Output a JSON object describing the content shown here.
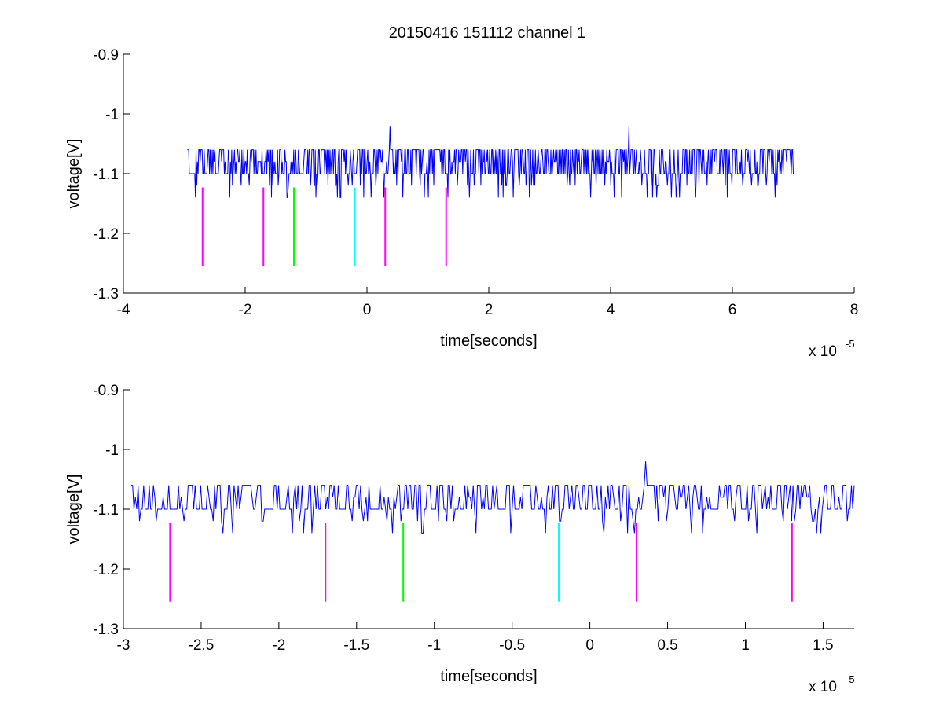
{
  "figure_title": "20150416 151112 channel 1",
  "chart_data": [
    {
      "type": "line",
      "title": "20150416 151112 channel 1",
      "xlabel": "time[seconds]",
      "ylabel": "voltage[V]",
      "x_multiplier": "x 10",
      "x_exponent": "-5",
      "xlim": [
        -4e-05,
        8e-05
      ],
      "ylim": [
        -1.3,
        -0.9
      ],
      "xticks": [
        -4e-05,
        -2e-05,
        0,
        2e-05,
        4e-05,
        6e-05,
        8e-05
      ],
      "xtick_labels": [
        "-4",
        "-2",
        "0",
        "2",
        "4",
        "6",
        "8"
      ],
      "yticks": [
        -0.9,
        -1.0,
        -1.1,
        -1.2,
        -1.3
      ],
      "ytick_labels": [
        "-0.9",
        "-1",
        "-1.1",
        "-1.2",
        "-1.3"
      ],
      "grid": false,
      "series": [
        {
          "color": "#0000ff",
          "x_range": [
            -2.95e-05,
            7e-05
          ],
          "base_level": -1.1,
          "noise_levels": [
            -1.06,
            -1.08,
            -1.1,
            -1.12,
            -1.14
          ],
          "spikes": [
            {
              "x": 3.8e-06,
              "y": -1.02
            },
            {
              "x": 4.3e-05,
              "y": -1.02
            }
          ]
        }
      ],
      "markers": [
        {
          "x": -2.7e-05,
          "y_top": -1.123,
          "y_bottom": -1.255,
          "color": "#ff00ff"
        },
        {
          "x": -1.7e-05,
          "y_top": -1.123,
          "y_bottom": -1.255,
          "color": "#ff00ff"
        },
        {
          "x": -1.2e-05,
          "y_top": -1.123,
          "y_bottom": -1.255,
          "color": "#00ff00"
        },
        {
          "x": -2e-06,
          "y_top": -1.123,
          "y_bottom": -1.255,
          "color": "#00ffff"
        },
        {
          "x": 3e-06,
          "y_top": -1.123,
          "y_bottom": -1.255,
          "color": "#ff00ff"
        },
        {
          "x": 1.3e-05,
          "y_top": -1.123,
          "y_bottom": -1.255,
          "color": "#ff00ff"
        }
      ]
    },
    {
      "type": "line",
      "title": "",
      "xlabel": "time[seconds]",
      "ylabel": "voltage[V]",
      "x_multiplier": "x 10",
      "x_exponent": "-5",
      "xlim": [
        -3e-05,
        1.7e-05
      ],
      "ylim": [
        -1.3,
        -0.9
      ],
      "xticks": [
        -3e-05,
        -2.5e-05,
        -2e-05,
        -1.5e-05,
        -1e-05,
        -5e-06,
        0,
        5e-06,
        1e-05,
        1.5e-05
      ],
      "xtick_labels": [
        "-3",
        "-2.5",
        "-2",
        "-1.5",
        "-1",
        "-0.5",
        "0",
        "0.5",
        "1",
        "1.5"
      ],
      "yticks": [
        -0.9,
        -1.0,
        -1.1,
        -1.2,
        -1.3
      ],
      "ytick_labels": [
        "-0.9",
        "-1",
        "-1.1",
        "-1.2",
        "-1.3"
      ],
      "grid": false,
      "series": [
        {
          "color": "#0000ff",
          "x_range": [
            -2.95e-05,
            1.7e-05
          ],
          "base_level": -1.1,
          "noise_levels": [
            -1.06,
            -1.08,
            -1.1,
            -1.12,
            -1.14
          ],
          "spikes": [
            {
              "x": 3.6e-06,
              "y": -1.02
            }
          ]
        }
      ],
      "markers": [
        {
          "x": -2.7e-05,
          "y_top": -1.123,
          "y_bottom": -1.255,
          "color": "#ff00ff"
        },
        {
          "x": -1.7e-05,
          "y_top": -1.123,
          "y_bottom": -1.255,
          "color": "#ff00ff"
        },
        {
          "x": -1.2e-05,
          "y_top": -1.123,
          "y_bottom": -1.255,
          "color": "#00ff00"
        },
        {
          "x": -2e-06,
          "y_top": -1.123,
          "y_bottom": -1.255,
          "color": "#00ffff"
        },
        {
          "x": 3e-06,
          "y_top": -1.123,
          "y_bottom": -1.255,
          "color": "#ff00ff"
        },
        {
          "x": 1.3e-05,
          "y_top": -1.123,
          "y_bottom": -1.255,
          "color": "#ff00ff"
        }
      ]
    }
  ]
}
